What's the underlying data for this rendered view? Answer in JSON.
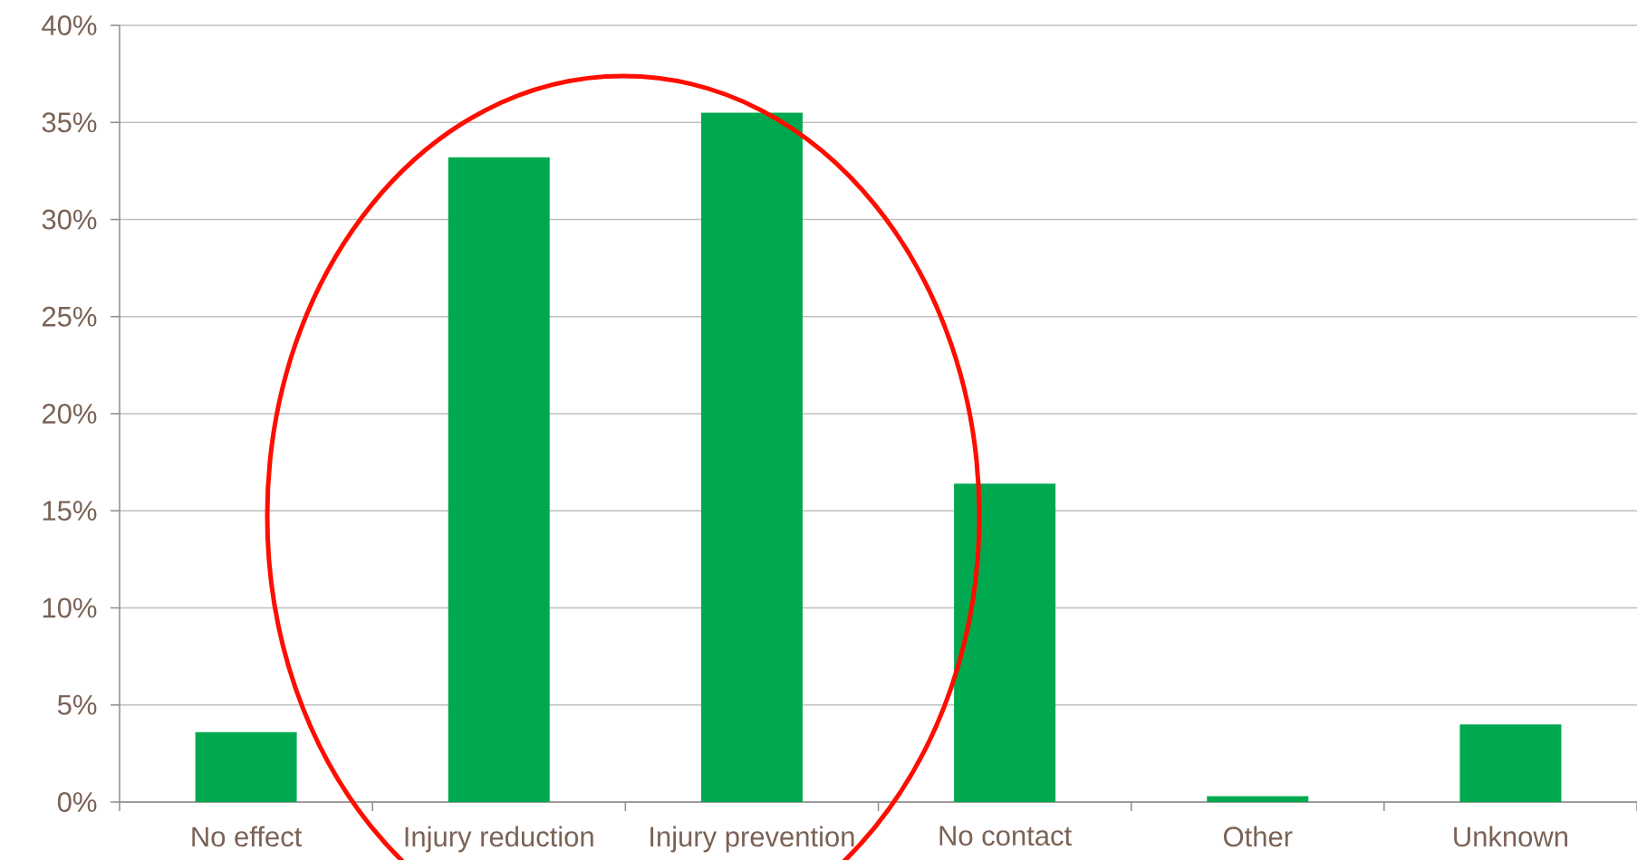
{
  "chart_data": {
    "type": "bar",
    "categories": [
      "No effect",
      "Injury reduction",
      "Injury prevention",
      "No contact",
      "Other",
      "Unknown"
    ],
    "values": [
      3.6,
      33.2,
      35.5,
      16.4,
      0.3,
      4.0
    ],
    "color": "#00a94f",
    "ylim": [
      0,
      40
    ],
    "yticks": [
      {
        "value": 0,
        "label": "0%"
      },
      {
        "value": 5,
        "label": "5%"
      },
      {
        "value": 10,
        "label": "10%"
      },
      {
        "value": 15,
        "label": "15%"
      },
      {
        "value": 20,
        "label": "20%"
      },
      {
        "value": 25,
        "label": "25%"
      },
      {
        "value": 30,
        "label": "30%"
      },
      {
        "value": 35,
        "label": "35%"
      },
      {
        "value": 40,
        "label": "40%"
      }
    ],
    "grid": "y"
  }
}
